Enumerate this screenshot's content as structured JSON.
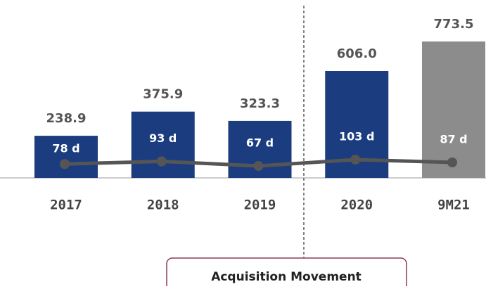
{
  "chart_data": {
    "type": "bar",
    "categories": [
      "2017",
      "2018",
      "2019",
      "2020",
      "9M21"
    ],
    "series": [
      {
        "type": "bar",
        "colors": [
          "#1b3d80",
          "#1b3d80",
          "#1b3d80",
          "#1b3d80",
          "#8c8c8c"
        ],
        "values": [
          238.9,
          375.9,
          323.3,
          606.0,
          773.5
        ],
        "value_labels": [
          "238.9",
          "375.9",
          "323.3",
          "606.0",
          "773.5"
        ]
      },
      {
        "type": "line",
        "color": "#555555",
        "values": [
          78,
          93,
          67,
          103,
          87
        ],
        "value_labels": [
          "78 d",
          "93 d",
          "67 d",
          "103 d",
          "87 d"
        ]
      }
    ],
    "annotation": "Acquisition Movement"
  }
}
